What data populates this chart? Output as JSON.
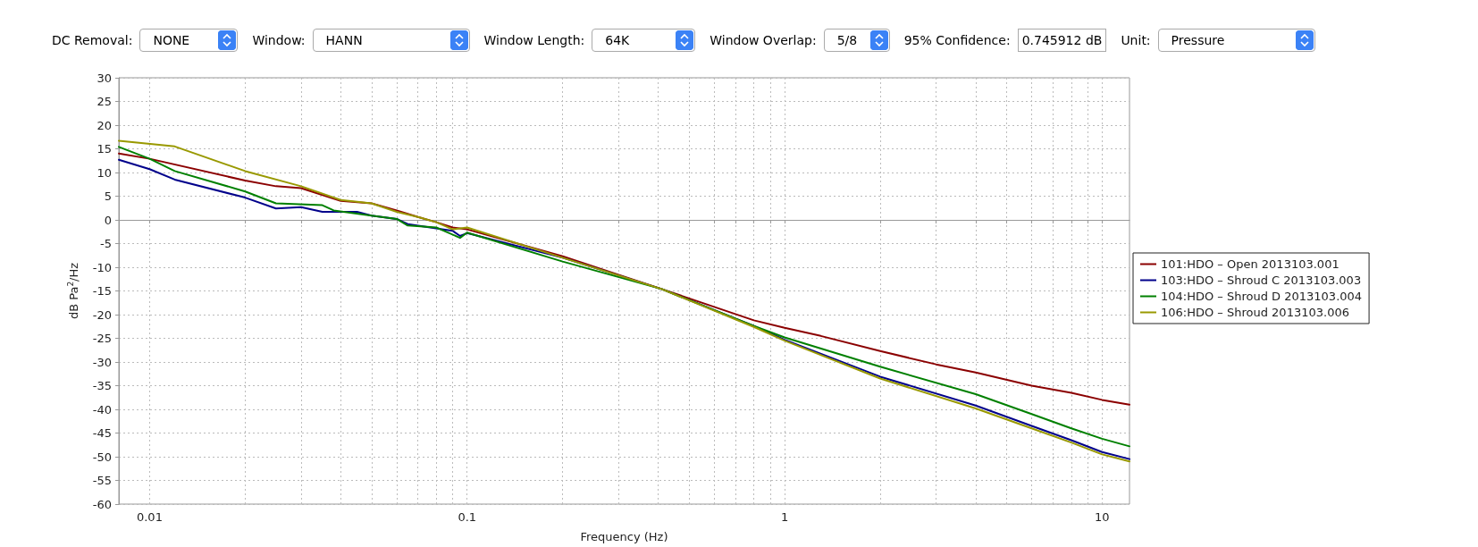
{
  "chart_data": {
    "type": "line",
    "xlabel": "Frequency (Hz)",
    "ylabel": "dB Pa$^{2}$/Hz",
    "log": "x",
    "grid": true,
    "legend": "right",
    "marker": "none",
    "line_style": "solid",
    "xlim": [
      0.008,
      12.2
    ],
    "ylim": [
      -60,
      30
    ],
    "xticks": [
      0.01,
      {
        "value": 0.02,
        "label": null
      },
      {
        "value": 0.03,
        "label": null
      },
      {
        "value": 0.04,
        "label": null
      },
      {
        "value": 0.05,
        "label": null
      },
      {
        "value": 0.06,
        "label": null
      },
      {
        "value": 0.07,
        "label": null
      },
      {
        "value": 0.08,
        "label": null
      },
      {
        "value": 0.09,
        "label": null
      },
      0.1,
      {
        "value": 0.2,
        "label": null
      },
      {
        "value": 0.3,
        "label": null
      },
      {
        "value": 0.4,
        "label": null
      },
      {
        "value": 0.5,
        "label": null
      },
      {
        "value": 0.6,
        "label": null
      },
      {
        "value": 0.7,
        "label": null
      },
      {
        "value": 0.8,
        "label": null
      },
      {
        "value": 0.9,
        "label": null
      },
      1,
      {
        "value": 2,
        "label": null
      },
      {
        "value": 3,
        "label": null
      },
      {
        "value": 4,
        "label": null
      },
      {
        "value": 5,
        "label": null
      },
      {
        "value": 6,
        "label": null
      },
      {
        "value": 7,
        "label": null
      },
      {
        "value": 8,
        "label": null
      },
      {
        "value": 9,
        "label": null
      },
      10
    ],
    "yticks": [
      -60,
      -55,
      -50,
      -45,
      -40,
      -35,
      -30,
      -25,
      -20,
      -15,
      -10,
      -5,
      0,
      5,
      10,
      15,
      20,
      25,
      30
    ],
    "annotations": [
      "DC Removal:",
      "NONE",
      "Window:",
      "HANN",
      "Window Length:",
      "64K",
      "Window Overlap:",
      "5/8",
      "95% Confidence:",
      "0.745912 dB",
      "Unit:",
      "Pressure"
    ],
    "series": [
      {
        "name": "101:HDO – Open 2013103.001",
        "color": "#8b0000",
        "x": [
          0.008,
          0.01,
          0.02,
          0.025,
          0.03,
          0.04,
          0.05,
          0.06,
          0.07,
          0.08,
          0.09,
          0.1,
          0.2,
          0.41,
          0.8,
          1,
          1.3,
          2,
          3,
          4,
          6,
          8,
          10,
          12.2
        ],
        "values": [
          14,
          12.9,
          8.3,
          7.1,
          6.7,
          4,
          3.5,
          2,
          0.6,
          -0.5,
          -1.6,
          -2,
          -7.7,
          -14.6,
          -21.2,
          -22.8,
          -24.5,
          -27.7,
          -30.5,
          -32.2,
          -35,
          -36.5,
          -38,
          -39
        ]
      },
      {
        "name": "103:HDO – Shroud C 2013103.003",
        "color": "#00008b",
        "x": [
          0.008,
          0.01,
          0.012,
          0.02,
          0.025,
          0.03,
          0.035,
          0.04,
          0.045,
          0.05,
          0.06,
          0.065,
          0.09,
          0.095,
          0.1,
          0.2,
          0.41,
          0.8,
          1,
          2,
          4,
          6,
          8,
          10,
          12.2
        ],
        "values": [
          12.7,
          10.7,
          8.5,
          4.7,
          2.4,
          2.7,
          1.7,
          1.7,
          1.7,
          0.9,
          0.2,
          -0.9,
          -2.3,
          -3.4,
          -2.8,
          -8,
          -14.6,
          -22.4,
          -25.3,
          -33.1,
          -39.2,
          -43.5,
          -46.5,
          -49,
          -50.5
        ]
      },
      {
        "name": "104:HDO – Shroud D 2013103.004",
        "color": "#008000",
        "x": [
          0.008,
          0.01,
          0.012,
          0.02,
          0.025,
          0.035,
          0.038,
          0.05,
          0.06,
          0.065,
          0.08,
          0.095,
          0.1,
          0.2,
          0.41,
          0.8,
          1,
          2,
          4,
          6,
          8,
          10,
          12.2
        ],
        "values": [
          15.4,
          12.9,
          10.3,
          6,
          3.5,
          3.1,
          2,
          0.9,
          0.2,
          -1.2,
          -1.6,
          -3.8,
          -2.7,
          -8.8,
          -14.6,
          -22.4,
          -24.8,
          -31,
          -36.8,
          -41,
          -44,
          -46.2,
          -47.8
        ]
      },
      {
        "name": "106:HDO – Shroud 2013103.006",
        "color": "#999900",
        "x": [
          0.008,
          0.012,
          0.02,
          0.03,
          0.04,
          0.05,
          0.06,
          0.07,
          0.08,
          0.09,
          0.1,
          0.2,
          0.41,
          0.8,
          1,
          2,
          4,
          6,
          8,
          10,
          12.2
        ],
        "values": [
          16.7,
          15.5,
          10.3,
          7.1,
          4.2,
          3.5,
          1.7,
          0.6,
          -0.5,
          -2,
          -1.6,
          -8,
          -14.6,
          -22.6,
          -25.5,
          -33.5,
          -39.8,
          -44,
          -47,
          -49.5,
          -51
        ]
      }
    ]
  }
}
